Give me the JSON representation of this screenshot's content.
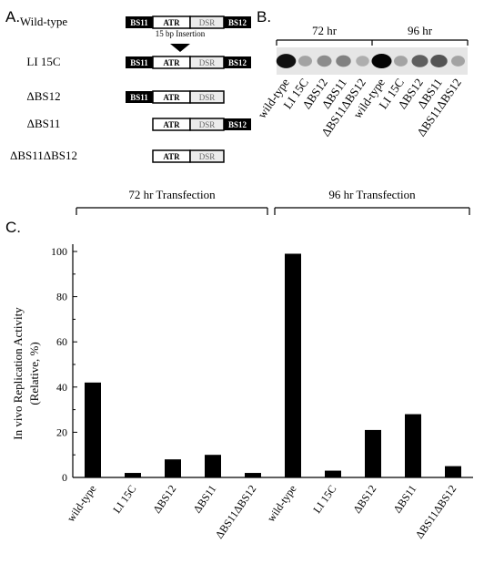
{
  "figure": {
    "panels": {
      "a": "A.",
      "b": "B.",
      "c": "C."
    }
  },
  "panel_a": {
    "insertion_label": "15 bp Insertion",
    "segments": {
      "bs11": "BS11",
      "atr": "ATR",
      "dsr": "DSR",
      "bs12": "BS12"
    },
    "constructs": [
      {
        "label": "Wild-type",
        "bs11": true,
        "bs12": true
      },
      {
        "label": "LI 15C",
        "bs11": true,
        "bs12": true
      },
      {
        "label": "ΔBS12",
        "bs11": true,
        "bs12": false
      },
      {
        "label": "ΔBS11",
        "bs11": false,
        "bs12": true
      },
      {
        "label": "ΔBS11ΔBS12",
        "bs11": false,
        "bs12": false
      }
    ]
  },
  "panel_b": {
    "groups": [
      "72 hr",
      "96 hr"
    ],
    "lanes": [
      "wild-type",
      "LI 15C",
      "ΔBS12",
      "ΔBS11",
      "ΔBS11ΔBS12",
      "wild-type",
      "LI 15C",
      "ΔBS12",
      "ΔBS11",
      "ΔBS11ΔBS12"
    ],
    "band_intensity": [
      0.95,
      0.3,
      0.4,
      0.45,
      0.25,
      1.0,
      0.3,
      0.6,
      0.65,
      0.3
    ]
  },
  "chart_data": {
    "type": "bar",
    "title": "",
    "groups": [
      "72 hr Transfection",
      "96 hr Transfection"
    ],
    "categories": [
      "wild-type",
      "LI 15C",
      "ΔBS12",
      "ΔBS11",
      "ΔBS11ΔBS12",
      "wild-type",
      "LI 15C",
      "ΔBS12",
      "ΔBS11",
      "ΔBS11ΔBS12"
    ],
    "values": [
      42,
      2,
      8,
      10,
      2,
      99,
      3,
      21,
      28,
      5
    ],
    "ylabel_line1": "In vivo Replication Activity",
    "ylabel_line2": "(Relative, %)",
    "xlabel": "",
    "ylim": [
      0,
      100
    ],
    "yticks": [
      "0",
      "20",
      "40",
      "60",
      "80",
      "100"
    ],
    "bar_color": "#000000",
    "grid": false
  }
}
